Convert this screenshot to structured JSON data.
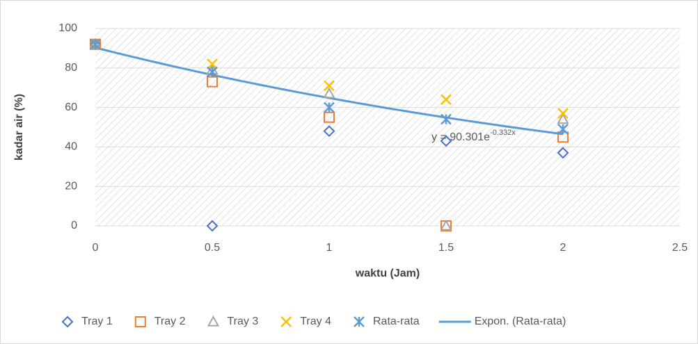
{
  "chart_data": {
    "type": "scatter",
    "x_label": "waktu (Jam)",
    "y_label": "kadar air (%)",
    "x": [
      0,
      0.5,
      1,
      1.5,
      2
    ],
    "series": [
      {
        "name": "Tray 1",
        "color": "#4472c4",
        "marker": "diamond",
        "values": [
          92,
          0,
          48,
          43,
          37
        ]
      },
      {
        "name": "Tray 2",
        "color": "#ed7d31",
        "marker": "square",
        "values": [
          92,
          73,
          55,
          0,
          45
        ]
      },
      {
        "name": "Tray 3",
        "color": "#a5a5a5",
        "marker": "triangle",
        "values": [
          92,
          79,
          67,
          0,
          54
        ]
      },
      {
        "name": "Tray 4",
        "color": "#ffc000",
        "marker": "x",
        "values": [
          92,
          82,
          71,
          64,
          57
        ]
      },
      {
        "name": "Rata-rata",
        "color": "#5b9bd5",
        "marker": "star",
        "values": [
          92,
          78,
          60,
          54,
          49
        ]
      }
    ],
    "trendline": {
      "name": "Expon. (Rata-rata)",
      "color": "#5b9bd5",
      "a": 90.301,
      "b": -0.332,
      "x": [
        0,
        2
      ],
      "label": "y = 90.301e",
      "label_exp": "-0.332x"
    },
    "xlim": [
      0,
      2.5
    ],
    "xticks": [
      0,
      0.5,
      1,
      1.5,
      2,
      2.5
    ],
    "ylim": [
      0,
      100
    ],
    "yticks": [
      0,
      20,
      40,
      60,
      80,
      100
    ],
    "grid": true,
    "legend": "bottom"
  }
}
